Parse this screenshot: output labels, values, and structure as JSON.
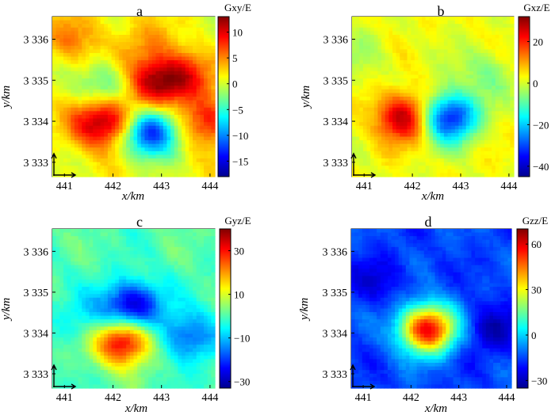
{
  "figure": {
    "panels": [
      {
        "id": "a",
        "label": "a",
        "colorbar_title": "Gxy/E",
        "colorbar_ticks": [
          "10",
          "5",
          "0",
          "−5",
          "−10",
          "−15"
        ],
        "colorbar_values": [
          10,
          5,
          0,
          -5,
          -10,
          -15
        ],
        "colorbar_range": [
          -18,
          13
        ]
      },
      {
        "id": "b",
        "label": "b",
        "colorbar_title": "Gxz/E",
        "colorbar_ticks": [
          "20",
          "0",
          "−20",
          "−40"
        ],
        "colorbar_values": [
          20,
          0,
          -20,
          -40
        ],
        "colorbar_range": [
          -45,
          32
        ]
      },
      {
        "id": "c",
        "label": "c",
        "colorbar_title": "Gyz/E",
        "colorbar_ticks": [
          "30",
          "10",
          "−10",
          "−30"
        ],
        "colorbar_values": [
          30,
          10,
          -10,
          -30
        ],
        "colorbar_range": [
          -33,
          40
        ]
      },
      {
        "id": "d",
        "label": "d",
        "colorbar_title": "Gzz/E",
        "colorbar_ticks": [
          "60",
          "30",
          "0",
          "−30"
        ],
        "colorbar_values": [
          60,
          30,
          0,
          -30
        ],
        "colorbar_range": [
          -35,
          70
        ]
      }
    ],
    "x_ticks": [
      "441",
      "442",
      "443",
      "444"
    ],
    "x_tick_values": [
      441,
      442,
      443,
      444
    ],
    "y_ticks": [
      "3 336",
      "3 335",
      "3 334",
      "3 333"
    ],
    "y_tick_values": [
      3336,
      3335,
      3334,
      3333
    ],
    "x_axis_label": "x/km",
    "y_axis_label": "y/km",
    "colormap": [
      "#00008f",
      "#0000ff",
      "#0080ff",
      "#00ffff",
      "#80ff80",
      "#ffff00",
      "#ff8000",
      "#ff0000",
      "#800000"
    ]
  },
  "chart_data": [
    {
      "type": "heatmap",
      "title": "a",
      "colorbar_label": "Gxy/E",
      "xlabel": "x/km",
      "ylabel": "y/km",
      "xlim": [
        440.75,
        444.1
      ],
      "ylim": [
        3332.65,
        3336.55
      ],
      "zlim": [
        -18,
        13
      ],
      "background": 1,
      "anomalies": [
        {
          "x": 441.7,
          "y": 3333.95,
          "value": 9
        },
        {
          "x": 442.2,
          "y": 3334.05,
          "value": 6
        },
        {
          "x": 442.85,
          "y": 3334.95,
          "value": 10
        },
        {
          "x": 443.45,
          "y": 3335.1,
          "value": 7
        },
        {
          "x": 443.95,
          "y": 3334.0,
          "value": 8
        },
        {
          "x": 441.9,
          "y": 3334.85,
          "value": -6
        },
        {
          "x": 442.75,
          "y": 3333.75,
          "value": -16
        },
        {
          "x": 442.6,
          "y": 3335.9,
          "value": 3
        },
        {
          "x": 441.2,
          "y": 3336.0,
          "value": 4
        }
      ]
    },
    {
      "type": "heatmap",
      "title": "b",
      "colorbar_label": "Gxz/E",
      "xlabel": "x/km",
      "ylabel": "y/km",
      "xlim": [
        440.75,
        444.1
      ],
      "ylim": [
        3332.65,
        3336.55
      ],
      "zlim": [
        -45,
        32
      ],
      "background": 2,
      "anomalies": [
        {
          "x": 441.85,
          "y": 3334.1,
          "value": 28
        },
        {
          "x": 442.75,
          "y": 3334.1,
          "value": -38
        },
        {
          "x": 443.5,
          "y": 3335.2,
          "value": -8
        },
        {
          "x": 441.0,
          "y": 3335.6,
          "value": -5
        }
      ]
    },
    {
      "type": "heatmap",
      "title": "c",
      "colorbar_label": "Gyz/E",
      "xlabel": "x/km",
      "ylabel": "y/km",
      "xlim": [
        440.75,
        444.1
      ],
      "ylim": [
        3332.65,
        3336.55
      ],
      "zlim": [
        -33,
        40
      ],
      "background": 0,
      "anomalies": [
        {
          "x": 442.4,
          "y": 3334.65,
          "value": -30
        },
        {
          "x": 442.2,
          "y": 3333.8,
          "value": 36
        },
        {
          "x": 443.55,
          "y": 3333.9,
          "value": -18
        },
        {
          "x": 441.5,
          "y": 3334.3,
          "value": -8
        }
      ]
    },
    {
      "type": "heatmap",
      "title": "d",
      "colorbar_label": "Gzz/E",
      "xlabel": "x/km",
      "ylabel": "y/km",
      "xlim": [
        440.75,
        444.1
      ],
      "ylim": [
        3332.65,
        3336.55
      ],
      "zlim": [
        -35,
        70
      ],
      "background": -15,
      "anomalies": [
        {
          "x": 442.35,
          "y": 3334.1,
          "value": 75
        },
        {
          "x": 443.7,
          "y": 3334.1,
          "value": -15
        },
        {
          "x": 441.3,
          "y": 3335.3,
          "value": -10
        }
      ]
    }
  ]
}
